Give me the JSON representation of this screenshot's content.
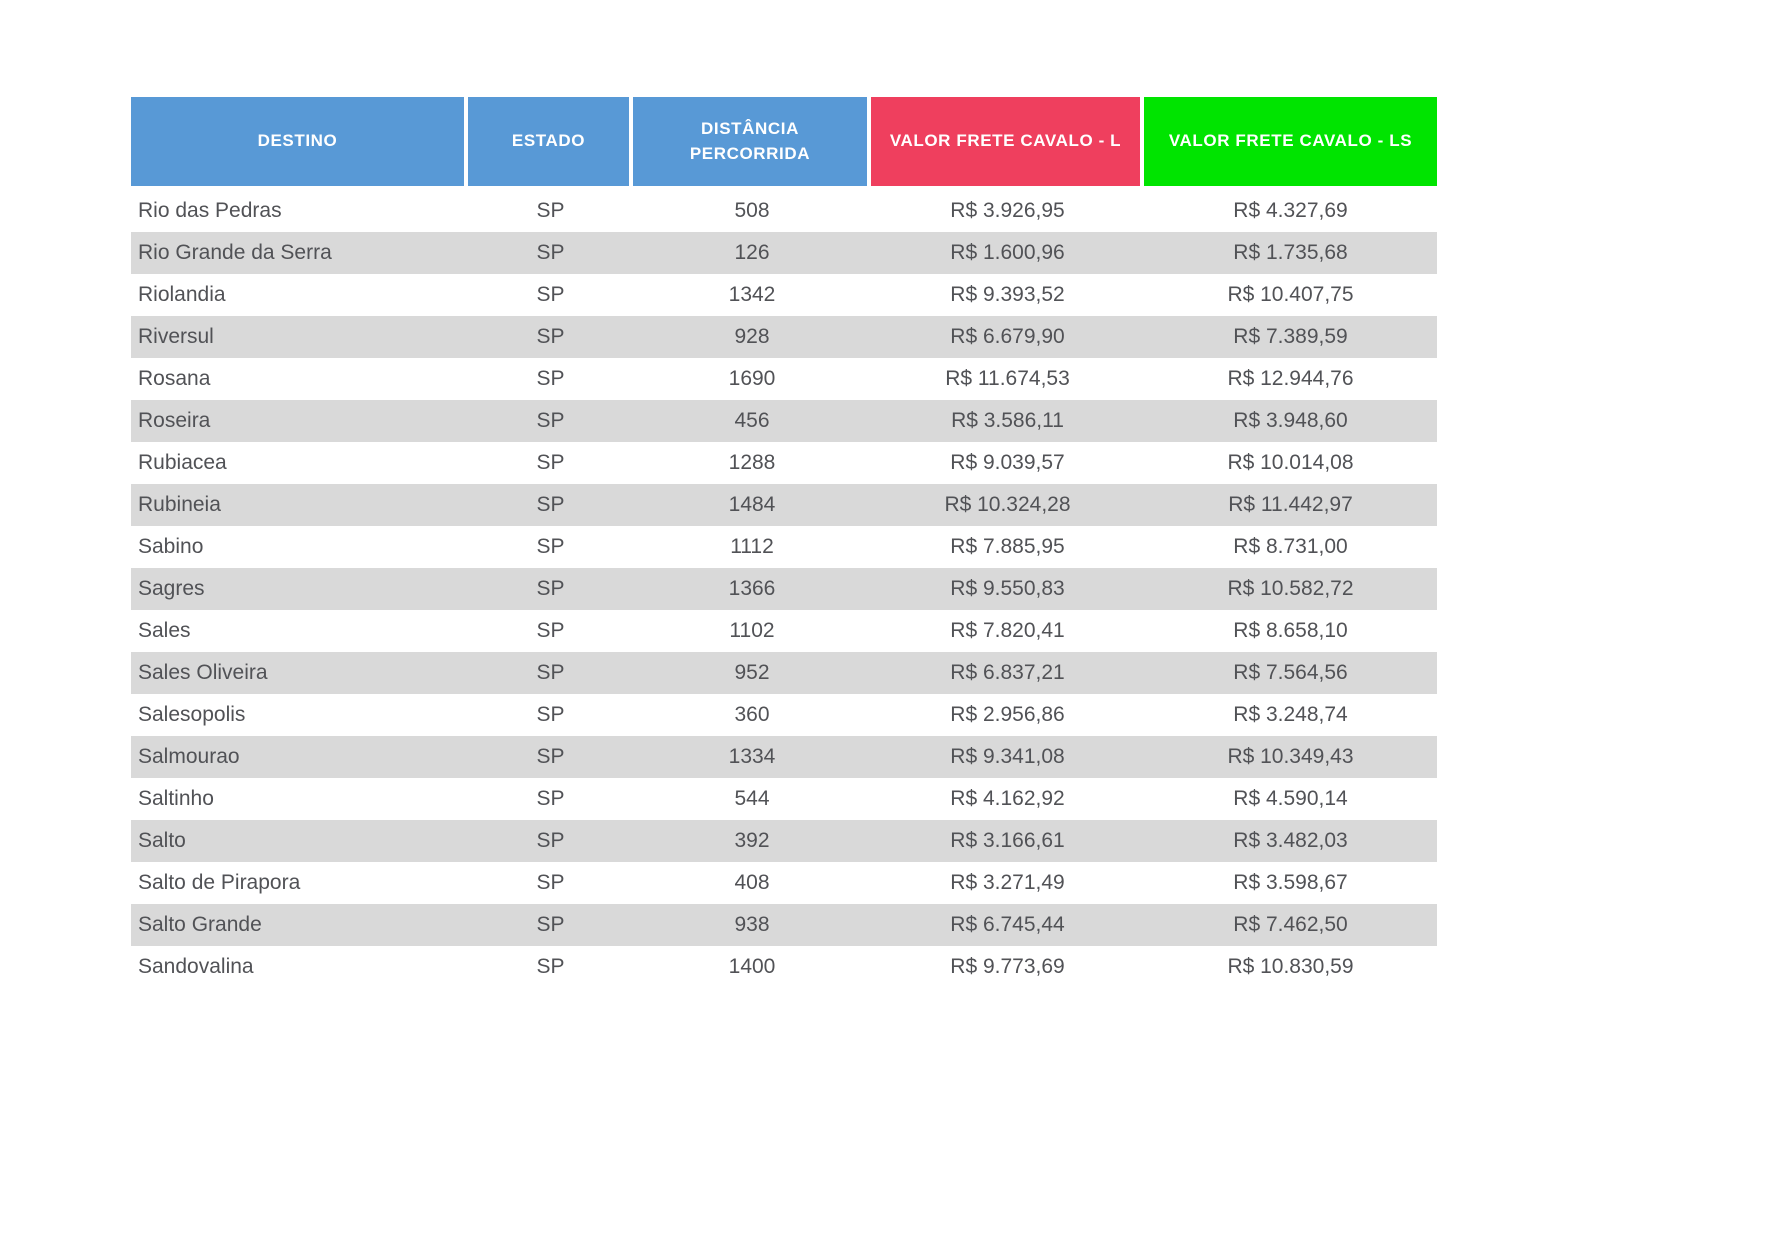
{
  "colors": {
    "header_blue": "#5899D6",
    "header_red": "#EF3F5E",
    "header_green": "#00E400",
    "header_text": "#FFFFFF",
    "row_stripe": "#D9D9D9",
    "row_plain": "#FFFFFF",
    "body_text": "#515256",
    "page_background": "#FFFFFF"
  },
  "chart_data": {
    "type": "table",
    "columns": [
      {
        "label": "DESTINO",
        "header_color": "#5899D6",
        "align": "left"
      },
      {
        "label": "ESTADO",
        "header_color": "#5899D6",
        "align": "center"
      },
      {
        "label": "DISTÂNCIA PERCORRIDA",
        "header_color": "#5899D6",
        "align": "center"
      },
      {
        "label": "VALOR FRETE CAVALO - L",
        "header_color": "#EF3F5E",
        "align": "center"
      },
      {
        "label": "VALOR FRETE CAVALO - LS",
        "header_color": "#00E400",
        "align": "center"
      }
    ],
    "rows": [
      [
        "Rio das Pedras",
        "SP",
        "508",
        "R$ 3.926,95",
        "R$ 4.327,69"
      ],
      [
        "Rio Grande da Serra",
        "SP",
        "126",
        "R$ 1.600,96",
        "R$ 1.735,68"
      ],
      [
        "Riolandia",
        "SP",
        "1342",
        "R$ 9.393,52",
        "R$ 10.407,75"
      ],
      [
        "Riversul",
        "SP",
        "928",
        "R$ 6.679,90",
        "R$ 7.389,59"
      ],
      [
        "Rosana",
        "SP",
        "1690",
        "R$ 11.674,53",
        "R$ 12.944,76"
      ],
      [
        "Roseira",
        "SP",
        "456",
        "R$ 3.586,11",
        "R$ 3.948,60"
      ],
      [
        "Rubiacea",
        "SP",
        "1288",
        "R$ 9.039,57",
        "R$ 10.014,08"
      ],
      [
        "Rubineia",
        "SP",
        "1484",
        "R$ 10.324,28",
        "R$ 11.442,97"
      ],
      [
        "Sabino",
        "SP",
        "1112",
        "R$ 7.885,95",
        "R$ 8.731,00"
      ],
      [
        "Sagres",
        "SP",
        "1366",
        "R$ 9.550,83",
        "R$ 10.582,72"
      ],
      [
        "Sales",
        "SP",
        "1102",
        "R$ 7.820,41",
        "R$ 8.658,10"
      ],
      [
        "Sales Oliveira",
        "SP",
        "952",
        "R$ 6.837,21",
        "R$ 7.564,56"
      ],
      [
        "Salesopolis",
        "SP",
        "360",
        "R$ 2.956,86",
        "R$ 3.248,74"
      ],
      [
        "Salmourao",
        "SP",
        "1334",
        "R$ 9.341,08",
        "R$ 10.349,43"
      ],
      [
        "Saltinho",
        "SP",
        "544",
        "R$ 4.162,92",
        "R$ 4.590,14"
      ],
      [
        "Salto",
        "SP",
        "392",
        "R$ 3.166,61",
        "R$ 3.482,03"
      ],
      [
        "Salto de Pirapora",
        "SP",
        "408",
        "R$ 3.271,49",
        "R$ 3.598,67"
      ],
      [
        "Salto Grande",
        "SP",
        "938",
        "R$ 6.745,44",
        "R$ 7.462,50"
      ],
      [
        "Sandovalina",
        "SP",
        "1400",
        "R$ 9.773,69",
        "R$ 10.830,59"
      ]
    ]
  }
}
